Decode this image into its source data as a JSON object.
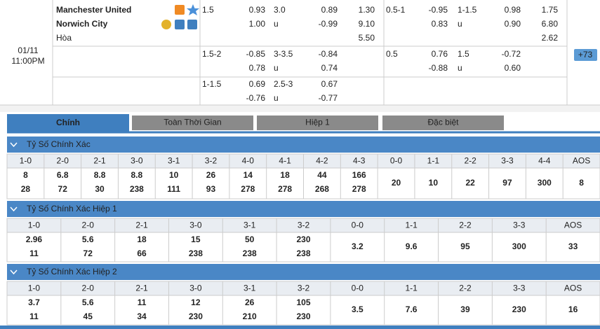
{
  "match": {
    "date": "01/11",
    "time": "11:00PM",
    "home": "Manchester United",
    "away": "Norwich City",
    "draw": "Hòa",
    "rows": [
      [
        "1.5",
        "0.93",
        "3.0",
        "0.89",
        "1.30",
        "0.5-1",
        "-0.95",
        "1-1.5",
        "0.98",
        "1.75"
      ],
      [
        null,
        "1.00",
        "u",
        "-0.99",
        "9.10",
        null,
        "0.83",
        "u",
        "0.90",
        "6.80"
      ],
      [
        null,
        null,
        null,
        null,
        "5.50",
        null,
        null,
        null,
        null,
        "2.62"
      ],
      [
        "1.5-2",
        "-0.85",
        "3-3.5",
        "-0.84",
        null,
        "0.5",
        "0.76",
        "1.5",
        "-0.72",
        null
      ],
      [
        null,
        "0.78",
        "u",
        "0.74",
        null,
        null,
        "-0.88",
        "u",
        "0.60",
        null
      ],
      [
        "1-1.5",
        "0.69",
        "2.5-3",
        "0.67",
        null,
        null,
        null,
        null,
        null,
        null
      ],
      [
        null,
        "-0.76",
        "u",
        "-0.77",
        null,
        null,
        null,
        null,
        null,
        null
      ]
    ],
    "more": "+73"
  },
  "tabs": [
    "Chính",
    "Toàn Thời Gian",
    "Hiệp 1",
    "Đặc biệt"
  ],
  "sections": [
    {
      "title": "Tỷ Số Chính Xác",
      "columns": [
        "1-0",
        "2-0",
        "2-1",
        "3-0",
        "3-1",
        "3-2",
        "4-0",
        "4-1",
        "4-2",
        "4-3",
        "0-0",
        "1-1",
        "2-2",
        "3-3",
        "4-4",
        "AOS"
      ],
      "odds": [
        [
          "8",
          "28"
        ],
        [
          "6.8",
          "72"
        ],
        [
          "8.8",
          "30"
        ],
        [
          "8.8",
          "238"
        ],
        [
          "10",
          "111"
        ],
        [
          "26",
          "93"
        ],
        [
          "14",
          "278"
        ],
        [
          "18",
          "278"
        ],
        [
          "44",
          "268"
        ],
        [
          "166",
          "278"
        ],
        [
          "20"
        ],
        [
          "10"
        ],
        [
          "22"
        ],
        [
          "97"
        ],
        [
          "300"
        ],
        [
          "8"
        ]
      ]
    },
    {
      "title": "Tỷ Số Chính Xác Hiệp 1",
      "columns": [
        "1-0",
        "2-0",
        "2-1",
        "3-0",
        "3-1",
        "3-2",
        "0-0",
        "1-1",
        "2-2",
        "3-3",
        "AOS"
      ],
      "odds": [
        [
          "2.96",
          "11"
        ],
        [
          "5.6",
          "72"
        ],
        [
          "18",
          "66"
        ],
        [
          "15",
          "238"
        ],
        [
          "50",
          "238"
        ],
        [
          "230",
          "238"
        ],
        [
          "3.2"
        ],
        [
          "9.6"
        ],
        [
          "95"
        ],
        [
          "300"
        ],
        [
          "33"
        ]
      ]
    },
    {
      "title": "Tỷ Số Chính Xác Hiệp 2",
      "columns": [
        "1-0",
        "2-0",
        "2-1",
        "3-0",
        "3-1",
        "3-2",
        "0-0",
        "1-1",
        "2-2",
        "3-3",
        "AOS"
      ],
      "odds": [
        [
          "3.7",
          "11"
        ],
        [
          "5.6",
          "45"
        ],
        [
          "11",
          "34"
        ],
        [
          "12",
          "230"
        ],
        [
          "26",
          "210"
        ],
        [
          "105",
          "230"
        ],
        [
          "3.5"
        ],
        [
          "7.6"
        ],
        [
          "39"
        ],
        [
          "230"
        ],
        [
          "16"
        ]
      ]
    }
  ]
}
